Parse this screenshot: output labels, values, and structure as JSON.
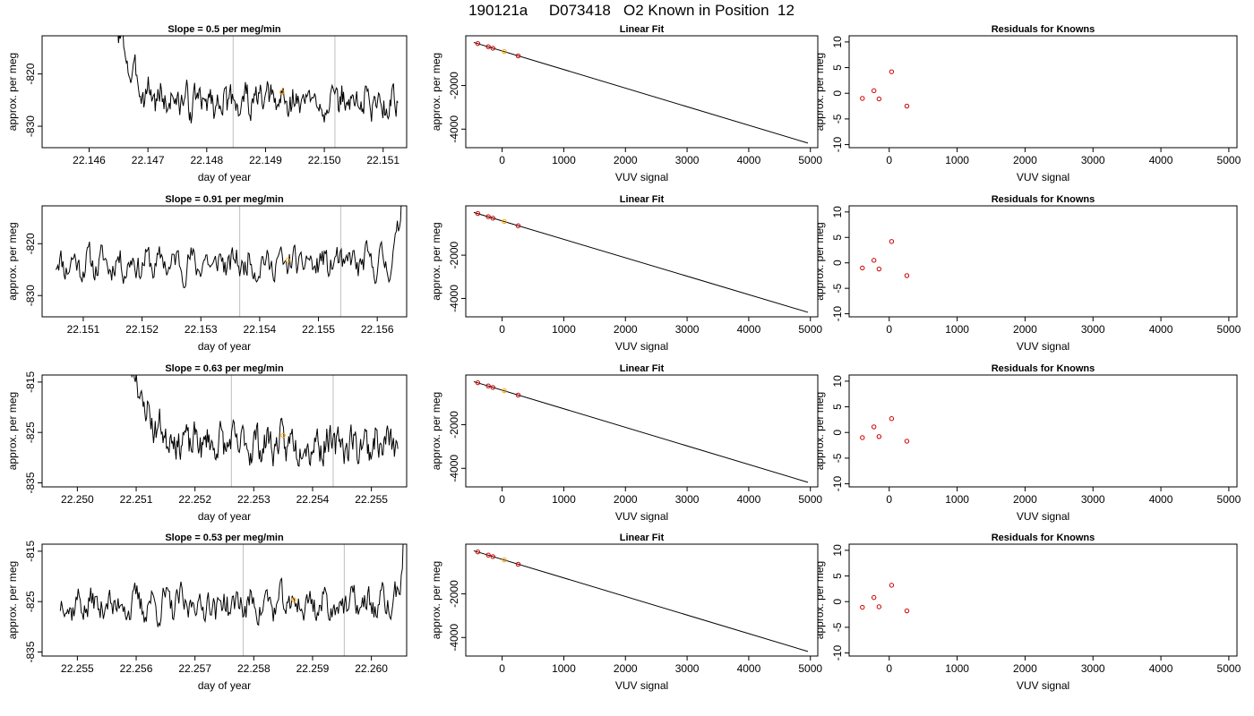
{
  "page_title": "190121a     D073418   O2 Known in Position  12",
  "colors": {
    "line": "#000000",
    "vline": "#c8c8c8",
    "highlight": "#ffa500",
    "residual": "#cc0000"
  },
  "chart_data": [
    {
      "type": "line",
      "title": "Slope =  0.5  per meg/min",
      "xlabel": "day of year",
      "ylabel": "approx. per meg",
      "xlim": [
        22.1452,
        22.1514
      ],
      "ylim": [
        -834.1,
        -812.7
      ],
      "xticks": [
        22.146,
        22.147,
        22.148,
        22.149,
        22.15,
        22.151
      ],
      "xtick_labels": [
        "22.146",
        "22.147",
        "22.148",
        "22.149",
        "22.150",
        "22.151"
      ],
      "yticks": [
        -820,
        -830
      ],
      "ytick_labels": [
        "-820",
        "-830"
      ],
      "x_start": 22.14635,
      "x_end": 22.15125,
      "n": 330,
      "seed": 3,
      "base": -825.3,
      "noise": 2.3,
      "spike": {
        "side": "start",
        "amount": 12,
        "decay": 0.00024
      },
      "vlines": [
        22.14845,
        22.15018
      ],
      "marker": {
        "x": 22.14928,
        "y": -823.5
      }
    },
    {
      "type": "scatter_line",
      "title": "Linear Fit",
      "xlabel": "VUV signal",
      "ylabel": "approx. per meg",
      "xlim": [
        -590,
        5120
      ],
      "ylim": [
        -4850,
        280
      ],
      "xticks": [
        0,
        1000,
        2000,
        3000,
        4000,
        5000
      ],
      "xtick_labels": [
        "0",
        "1000",
        "2000",
        "3000",
        "4000",
        "5000"
      ],
      "yticks": [
        -2000,
        -4000
      ],
      "ytick_labels": [
        "-2000",
        "-4000"
      ],
      "fit": {
        "x": [
          -460,
          4960
        ],
        "y": [
          -25,
          -4640
        ]
      },
      "points": [
        {
          "x": -395,
          "y": -75
        },
        {
          "x": -225,
          "y": -220
        },
        {
          "x": -150,
          "y": -290
        },
        {
          "x": 35,
          "y": -440
        },
        {
          "x": 260,
          "y": -640
        }
      ],
      "highlight_index": 3
    },
    {
      "type": "scatter",
      "title": "Residuals for Knowns",
      "xlabel": "VUV signal",
      "ylabel": "approx. per meg",
      "xlim": [
        -590,
        5120
      ],
      "ylim": [
        -10.6,
        11.2
      ],
      "xticks": [
        0,
        1000,
        2000,
        3000,
        4000,
        5000
      ],
      "xtick_labels": [
        "0",
        "1000",
        "2000",
        "3000",
        "4000",
        "5000"
      ],
      "yticks": [
        10,
        5,
        0,
        -5,
        -10
      ],
      "ytick_labels": [
        "10",
        "5",
        "0",
        "-5",
        "-10"
      ],
      "points": [
        {
          "x": -395,
          "y": -1.0
        },
        {
          "x": -225,
          "y": 0.5
        },
        {
          "x": -150,
          "y": -1.1
        },
        {
          "x": 35,
          "y": 4.2
        },
        {
          "x": 260,
          "y": -2.5
        }
      ]
    },
    {
      "type": "line",
      "title": "Slope =  0.91  per meg/min",
      "xlabel": "day of year",
      "ylabel": "approx. per meg",
      "xlim": [
        22.1503,
        22.1565
      ],
      "ylim": [
        -834.1,
        -812.7
      ],
      "xticks": [
        22.151,
        22.152,
        22.153,
        22.154,
        22.155,
        22.156
      ],
      "xtick_labels": [
        "22.151",
        "22.152",
        "22.153",
        "22.154",
        "22.155",
        "22.156"
      ],
      "yticks": [
        -820,
        -830
      ],
      "ytick_labels": [
        "-820",
        "-830"
      ],
      "x_start": 22.15053,
      "x_end": 22.15645,
      "n": 330,
      "seed": 11,
      "base": -823.8,
      "noise": 2.1,
      "spike": {
        "side": "end",
        "amount": 12,
        "decay": 6e-05
      },
      "vlines": [
        22.15366,
        22.15538
      ],
      "marker": {
        "x": 22.15448,
        "y": -823.2
      }
    },
    {
      "type": "scatter_line",
      "title": "Linear Fit",
      "xlabel": "VUV signal",
      "ylabel": "approx. per meg",
      "xlim": [
        -590,
        5120
      ],
      "ylim": [
        -4850,
        280
      ],
      "xticks": [
        0,
        1000,
        2000,
        3000,
        4000,
        5000
      ],
      "xtick_labels": [
        "0",
        "1000",
        "2000",
        "3000",
        "4000",
        "5000"
      ],
      "yticks": [
        -2000,
        -4000
      ],
      "ytick_labels": [
        "-2000",
        "-4000"
      ],
      "fit": {
        "x": [
          -460,
          4960
        ],
        "y": [
          -25,
          -4640
        ]
      },
      "points": [
        {
          "x": -395,
          "y": -75
        },
        {
          "x": -225,
          "y": -220
        },
        {
          "x": -150,
          "y": -290
        },
        {
          "x": 35,
          "y": -440
        },
        {
          "x": 260,
          "y": -640
        }
      ],
      "highlight_index": 3
    },
    {
      "type": "scatter",
      "title": "Residuals for Knowns",
      "xlabel": "VUV signal",
      "ylabel": "approx. per meg",
      "xlim": [
        -590,
        5120
      ],
      "ylim": [
        -10.6,
        11.2
      ],
      "xticks": [
        0,
        1000,
        2000,
        3000,
        4000,
        5000
      ],
      "xtick_labels": [
        "0",
        "1000",
        "2000",
        "3000",
        "4000",
        "5000"
      ],
      "yticks": [
        10,
        5,
        0,
        -5,
        -10
      ],
      "ytick_labels": [
        "10",
        "5",
        "0",
        "-5",
        "-10"
      ],
      "points": [
        {
          "x": -395,
          "y": -1.0
        },
        {
          "x": -225,
          "y": 0.5
        },
        {
          "x": -150,
          "y": -1.2
        },
        {
          "x": 35,
          "y": 4.2
        },
        {
          "x": 260,
          "y": -2.5
        }
      ]
    },
    {
      "type": "line",
      "title": "Slope =  0.63  per meg/min",
      "xlabel": "day of year",
      "ylabel": "approx. per meg",
      "xlim": [
        22.2494,
        22.2556
      ],
      "ylim": [
        -835.8,
        -813.6
      ],
      "xticks": [
        22.25,
        22.251,
        22.252,
        22.253,
        22.254,
        22.255
      ],
      "xtick_labels": [
        "22.250",
        "22.251",
        "22.252",
        "22.253",
        "22.254",
        "22.255"
      ],
      "yticks": [
        -815,
        -825,
        -835
      ],
      "ytick_labels": [
        "-815",
        "-825",
        "-835"
      ],
      "x_start": 22.25075,
      "x_end": 22.25545,
      "n": 320,
      "seed": 23,
      "base": -827.2,
      "noise": 2.5,
      "spike": {
        "side": "start",
        "amount": 15,
        "decay": 0.00026
      },
      "vlines": [
        22.25262,
        22.25435
      ],
      "marker": {
        "x": 22.2535,
        "y": -825.6
      }
    },
    {
      "type": "scatter_line",
      "title": "Linear Fit",
      "xlabel": "VUV signal",
      "ylabel": "approx. per meg",
      "xlim": [
        -590,
        5120
      ],
      "ylim": [
        -4850,
        280
      ],
      "xticks": [
        0,
        1000,
        2000,
        3000,
        4000,
        5000
      ],
      "xtick_labels": [
        "0",
        "1000",
        "2000",
        "3000",
        "4000",
        "5000"
      ],
      "yticks": [
        -2000,
        -4000
      ],
      "ytick_labels": [
        "-2000",
        "-4000"
      ],
      "fit": {
        "x": [
          -460,
          4960
        ],
        "y": [
          -25,
          -4640
        ]
      },
      "points": [
        {
          "x": -395,
          "y": -75
        },
        {
          "x": -225,
          "y": -220
        },
        {
          "x": -150,
          "y": -290
        },
        {
          "x": 35,
          "y": -440
        },
        {
          "x": 260,
          "y": -640
        }
      ],
      "highlight_index": 3
    },
    {
      "type": "scatter",
      "title": "Residuals for Knowns",
      "xlabel": "VUV signal",
      "ylabel": "approx. per meg",
      "xlim": [
        -590,
        5120
      ],
      "ylim": [
        -10.6,
        11.2
      ],
      "xticks": [
        0,
        1000,
        2000,
        3000,
        4000,
        5000
      ],
      "xtick_labels": [
        "0",
        "1000",
        "2000",
        "3000",
        "4000",
        "5000"
      ],
      "yticks": [
        10,
        5,
        0,
        -5,
        -10
      ],
      "ytick_labels": [
        "10",
        "5",
        "0",
        "-5",
        "-10"
      ],
      "points": [
        {
          "x": -395,
          "y": -1.0
        },
        {
          "x": -225,
          "y": 1.1
        },
        {
          "x": -150,
          "y": -0.8
        },
        {
          "x": 35,
          "y": 2.7
        },
        {
          "x": 260,
          "y": -1.7
        }
      ]
    },
    {
      "type": "line",
      "title": "Slope =  0.53  per meg/min",
      "xlabel": "day of year",
      "ylabel": "approx. per meg",
      "xlim": [
        22.2544,
        22.2606
      ],
      "ylim": [
        -835.8,
        -813.6
      ],
      "xticks": [
        22.255,
        22.256,
        22.257,
        22.258,
        22.259,
        22.26
      ],
      "xtick_labels": [
        "22.255",
        "22.256",
        "22.257",
        "22.258",
        "22.259",
        "22.260"
      ],
      "yticks": [
        -815,
        -825,
        -835
      ],
      "ytick_labels": [
        "-815",
        "-825",
        "-835"
      ],
      "x_start": 22.25471,
      "x_end": 22.26058,
      "n": 330,
      "seed": 37,
      "base": -825.6,
      "noise": 2.3,
      "spike": {
        "side": "end",
        "amount": 12,
        "decay": 5e-05
      },
      "vlines": [
        22.25782,
        22.25954
      ],
      "marker": {
        "x": 22.25868,
        "y": -824.6
      }
    },
    {
      "type": "scatter_line",
      "title": "Linear Fit",
      "xlabel": "VUV signal",
      "ylabel": "approx. per meg",
      "xlim": [
        -590,
        5120
      ],
      "ylim": [
        -4850,
        280
      ],
      "xticks": [
        0,
        1000,
        2000,
        3000,
        4000,
        5000
      ],
      "xtick_labels": [
        "0",
        "1000",
        "2000",
        "3000",
        "4000",
        "5000"
      ],
      "yticks": [
        -2000,
        -4000
      ],
      "ytick_labels": [
        "-2000",
        "-4000"
      ],
      "fit": {
        "x": [
          -460,
          4960
        ],
        "y": [
          -25,
          -4640
        ]
      },
      "points": [
        {
          "x": -395,
          "y": -75
        },
        {
          "x": -225,
          "y": -220
        },
        {
          "x": -150,
          "y": -290
        },
        {
          "x": 35,
          "y": -440
        },
        {
          "x": 260,
          "y": -640
        }
      ],
      "highlight_index": 3
    },
    {
      "type": "scatter",
      "title": "Residuals for Knowns",
      "xlabel": "VUV signal",
      "ylabel": "approx. per meg",
      "xlim": [
        -590,
        5120
      ],
      "ylim": [
        -10.6,
        11.2
      ],
      "xticks": [
        0,
        1000,
        2000,
        3000,
        4000,
        5000
      ],
      "xtick_labels": [
        "0",
        "1000",
        "2000",
        "3000",
        "4000",
        "5000"
      ],
      "yticks": [
        10,
        5,
        0,
        -5,
        -10
      ],
      "ytick_labels": [
        "10",
        "5",
        "0",
        "-5",
        "-10"
      ],
      "points": [
        {
          "x": -395,
          "y": -1.1
        },
        {
          "x": -225,
          "y": 0.8
        },
        {
          "x": -150,
          "y": -1.0
        },
        {
          "x": 35,
          "y": 3.2
        },
        {
          "x": 260,
          "y": -1.8
        }
      ]
    }
  ]
}
